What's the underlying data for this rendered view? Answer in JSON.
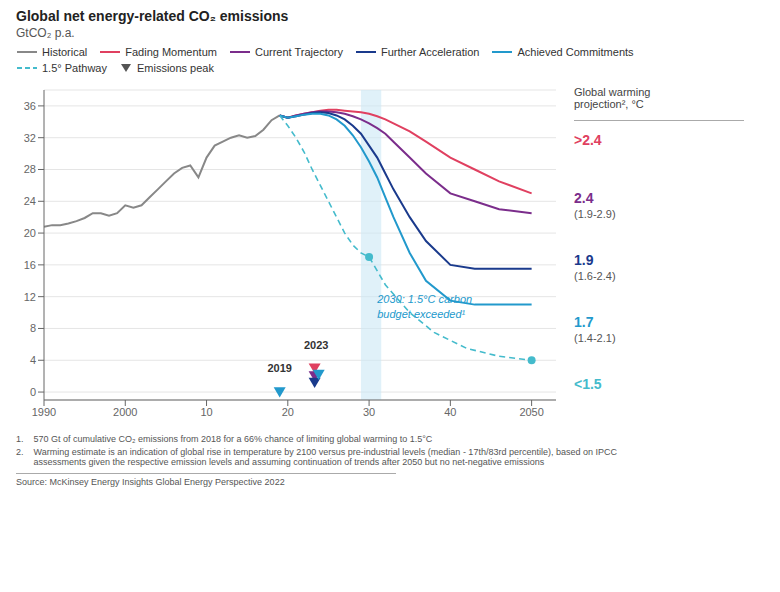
{
  "chart_data": {
    "type": "line",
    "title": "Global net energy-related CO₂ emissions",
    "subtitle": "GtCO₂ p.a.",
    "xlim": [
      1990,
      2053
    ],
    "ylim": [
      -1,
      38
    ],
    "xticks": [
      1990,
      2000,
      {
        "value": 2010,
        "label": "10"
      },
      {
        "value": 2020,
        "label": "20"
      },
      {
        "value": 2030,
        "label": "30"
      },
      {
        "value": 2040,
        "label": "40"
      },
      2050
    ],
    "yticks": [
      0,
      4,
      8,
      12,
      16,
      20,
      24,
      28,
      32,
      36
    ],
    "grid": "y",
    "legend": "upper left",
    "series": [
      {
        "name": "Historical",
        "color": "#888888",
        "x": [
          1990,
          1991,
          1992,
          1993,
          1994,
          1995,
          1996,
          1997,
          1998,
          1999,
          2000,
          2001,
          2002,
          2003,
          2004,
          2005,
          2006,
          2007,
          2008,
          2009,
          2010,
          2011,
          2012,
          2013,
          2014,
          2015,
          2016,
          2017,
          2018,
          2019
        ],
        "values": [
          20.8,
          21.0,
          21.0,
          21.2,
          21.5,
          21.9,
          22.5,
          22.5,
          22.2,
          22.5,
          23.5,
          23.2,
          23.5,
          24.5,
          25.5,
          26.5,
          27.5,
          28.2,
          28.5,
          27.0,
          29.5,
          31.0,
          31.5,
          32.0,
          32.3,
          32.0,
          32.2,
          33.0,
          34.2,
          34.8
        ]
      },
      {
        "name": "Fading Momentum",
        "color": "#e04060",
        "x": [
          2019,
          2020,
          2021,
          2022,
          2023,
          2024,
          2025,
          2026,
          2027,
          2028,
          2029,
          2030,
          2031,
          2032,
          2033,
          2035,
          2037,
          2040,
          2043,
          2046,
          2050
        ],
        "values": [
          34.8,
          34.5,
          34.8,
          35.0,
          35.2,
          35.4,
          35.5,
          35.5,
          35.4,
          35.3,
          35.2,
          35.0,
          34.7,
          34.3,
          33.8,
          32.8,
          31.5,
          29.5,
          28.0,
          26.5,
          25.0
        ]
      },
      {
        "name": "Current Trajectory",
        "color": "#7b2d8b",
        "x": [
          2019,
          2020,
          2021,
          2022,
          2023,
          2024,
          2025,
          2026,
          2027,
          2028,
          2029,
          2030,
          2031,
          2032,
          2033,
          2035,
          2037,
          2040,
          2043,
          2046,
          2050
        ],
        "values": [
          34.8,
          34.5,
          34.8,
          35.0,
          35.2,
          35.3,
          35.3,
          35.2,
          35.0,
          34.7,
          34.3,
          33.8,
          33.2,
          32.5,
          31.5,
          29.5,
          27.5,
          25.0,
          24.0,
          23.0,
          22.5
        ]
      },
      {
        "name": "Further Acceleration",
        "color": "#1a3a8c",
        "x": [
          2019,
          2020,
          2021,
          2022,
          2023,
          2024,
          2025,
          2026,
          2027,
          2028,
          2029,
          2030,
          2031,
          2032,
          2033,
          2035,
          2037,
          2040,
          2043,
          2046,
          2050
        ],
        "values": [
          34.8,
          34.5,
          34.7,
          34.9,
          35.1,
          35.2,
          35.1,
          34.8,
          34.3,
          33.5,
          32.5,
          31.0,
          29.5,
          27.5,
          25.5,
          22.0,
          19.0,
          16.0,
          15.5,
          15.5,
          15.5
        ]
      },
      {
        "name": "Achieved Commitments",
        "color": "#2299cc",
        "x": [
          2019,
          2020,
          2021,
          2022,
          2023,
          2024,
          2025,
          2026,
          2027,
          2028,
          2029,
          2030,
          2031,
          2032,
          2033,
          2035,
          2037,
          2040,
          2043,
          2046,
          2050
        ],
        "values": [
          34.8,
          34.5,
          34.7,
          34.9,
          35.0,
          35.0,
          34.8,
          34.3,
          33.5,
          32.3,
          30.8,
          29.0,
          27.0,
          24.5,
          22.0,
          17.5,
          14.0,
          11.5,
          11.0,
          11.0,
          11.0
        ]
      },
      {
        "name": "1.5° Pathway",
        "color": "#44bbcc",
        "line_style": "dashed",
        "x": [
          2019,
          2020,
          2021,
          2022,
          2023,
          2024,
          2025,
          2026,
          2027,
          2028,
          2029,
          2030,
          2032,
          2035,
          2038,
          2042,
          2046,
          2050
        ],
        "values": [
          34.8,
          33.5,
          32.0,
          30.2,
          28.0,
          26.0,
          24.0,
          22.0,
          20.0,
          18.5,
          17.5,
          17.0,
          13.5,
          10.0,
          7.5,
          5.5,
          4.5,
          4.0
        ]
      },
      {
        "type": "scatter",
        "marker": "circle",
        "color": "#44bbcc",
        "x": [
          2030,
          2050
        ],
        "values": [
          17.0,
          4.0
        ]
      },
      {
        "name": "Emissions peak",
        "type": "scatter",
        "marker": "triangle-down",
        "color": "#555555",
        "colors": [
          "#2299cc",
          "#e04060",
          "#7b2d8b",
          "#1a3a8c",
          "#2299cc"
        ],
        "x": [
          2019,
          2023.3,
          2023.3,
          2023.3,
          2023.8
        ],
        "values": [
          0.0,
          3.0,
          2.0,
          1.2,
          2.2
        ]
      }
    ],
    "spans": [
      {
        "x": [
          2029.0,
          2031.5
        ],
        "color": "#cce8f5"
      }
    ],
    "annotations": [
      {
        "text": "2019",
        "x": 2019,
        "y": 2.2
      },
      {
        "text": "2023",
        "x": 2023.5,
        "y": 5.0
      },
      {
        "text": "2030: 1.5°C carbon\nbudget exceeded¹",
        "x": 2031.0,
        "y": 12.5,
        "color": "#2299cc"
      }
    ],
    "side_labels": {
      "title": "Global warming\nprojection², °C",
      "items": [
        {
          "text": ">2.4",
          "color": "#e04060"
        },
        {
          "text": "2.4",
          "sub": "(1.9-2.9)",
          "color": "#7b2d8b"
        },
        {
          "text": "1.9",
          "sub": "(1.6-2.4)",
          "color": "#1a3a8c"
        },
        {
          "text": "1.7",
          "sub": "(1.4-2.1)",
          "color": "#2299cc"
        },
        {
          "text": "<1.5",
          "color": "#44bbcc"
        }
      ]
    },
    "footnotes": [
      "1.    570 Gt of cumulative CO₂ emissions from 2018 for a 66% chance of limiting global warming to 1.5°C",
      "2.    Warming estimate is an indication of global rise in temperature by 2100 versus pre-industrial levels (median - 17th/83rd percentile), based on IPCC\n       assessments given the respective emission levels and assuming continuation of trends after 2050 but no net-negative emissions"
    ],
    "source": "Source: McKinsey Energy Insights Global Energy Perspective 2022"
  }
}
